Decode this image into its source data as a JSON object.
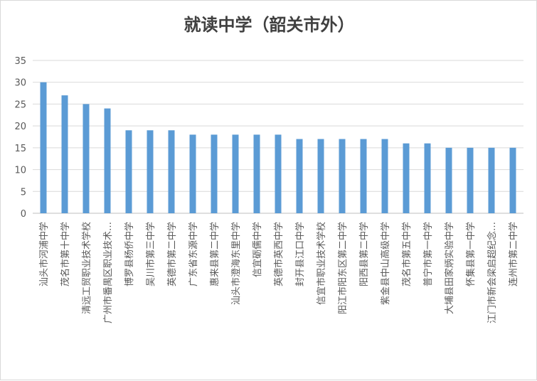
{
  "chart_data": {
    "type": "bar",
    "title": "就读中学（韶关市外）",
    "xlabel": "",
    "ylabel": "",
    "ylim": [
      0,
      35
    ],
    "yticks": [
      0,
      5,
      10,
      15,
      20,
      25,
      30,
      35
    ],
    "grid": true,
    "legend": "none",
    "bar_color": "#5b9bd5",
    "categories": [
      "汕头市河浦中学",
      "茂名市第十中学",
      "清远工贸职业技术学校",
      "广州市番禺区职业技术…",
      "博罗县杨侨中学",
      "吴川市第三中学",
      "英德市第二中学",
      "广东省东源中学",
      "惠来县第二中学",
      "汕头市澄海东里中学",
      "信宜砺儒中学",
      "英德市英西中学",
      "封开县江口中学",
      "信宜市职业技术学校",
      "阳江市阳东区第二中学",
      "阳西县第二中学",
      "紫金县中山高级中学",
      "茂名市第五中学",
      "普宁市第一中学",
      "大埔县田家炳实验中学",
      "怀集县第一中学",
      "江门市新会梁启超纪念…",
      "连州市第二中学"
    ],
    "values": [
      30,
      27,
      25,
      24,
      19,
      19,
      19,
      18,
      18,
      18,
      18,
      18,
      17,
      17,
      17,
      17,
      17,
      16,
      16,
      15,
      15,
      15,
      15
    ]
  }
}
